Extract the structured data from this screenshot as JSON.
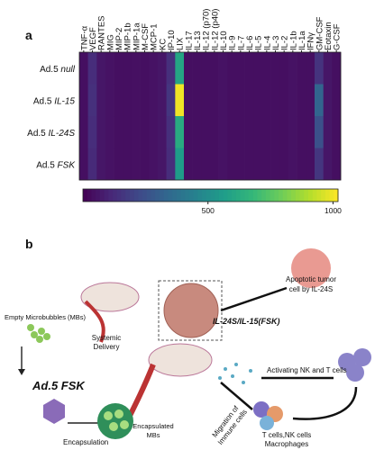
{
  "chart_data": {
    "type": "heatmap",
    "panel_label": "a",
    "x_categories": [
      "TNF-α",
      "VEGF",
      "RANTES",
      "MIG",
      "MIP-2",
      "MIP-1b",
      "MIP-1a",
      "M-CSF",
      "MCP-1",
      "KC",
      "IP-10",
      "LIX",
      "IL-17",
      "IL-13",
      "IL-12 (p70)",
      "IL-12 (p40)",
      "IL-10",
      "IL-9",
      "IL-7",
      "IL-6",
      "IL-5",
      "IL-4",
      "IL-3",
      "IL-2",
      "IL-1b",
      "IL-1a",
      "IFNγ",
      "GM-CSF",
      "Eotaxin",
      "G-CSF"
    ],
    "y_categories": [
      "Ad.5 null",
      "Ad.5 IL-15",
      "Ad.5 IL-24S",
      "Ad.5 FSK"
    ],
    "values": [
      [
        40,
        130,
        60,
        50,
        40,
        40,
        45,
        40,
        50,
        60,
        140,
        600,
        40,
        40,
        40,
        40,
        50,
        40,
        40,
        40,
        40,
        40,
        40,
        40,
        50,
        40,
        40,
        150,
        60,
        40
      ],
      [
        40,
        140,
        60,
        50,
        40,
        40,
        45,
        40,
        50,
        60,
        160,
        1000,
        40,
        40,
        40,
        40,
        50,
        40,
        40,
        40,
        40,
        40,
        40,
        40,
        50,
        40,
        40,
        330,
        60,
        40
      ],
      [
        40,
        130,
        60,
        50,
        40,
        40,
        45,
        40,
        50,
        60,
        140,
        620,
        40,
        40,
        40,
        40,
        50,
        40,
        40,
        40,
        40,
        40,
        40,
        40,
        50,
        40,
        40,
        250,
        60,
        40
      ],
      [
        40,
        120,
        60,
        50,
        40,
        40,
        45,
        40,
        50,
        60,
        130,
        560,
        40,
        40,
        40,
        40,
        50,
        40,
        40,
        40,
        40,
        40,
        40,
        40,
        50,
        40,
        40,
        160,
        60,
        40
      ]
    ],
    "colormap": "viridis",
    "zlim": [
      0,
      1020
    ],
    "colorbar_ticks": [
      500,
      1000
    ]
  },
  "diagram": {
    "panel_label": "b",
    "empty_mbs": "Empty Microbubbles (MBs)",
    "delivery": [
      "Systemic",
      "Delivery"
    ],
    "vector": "Ad.5 FSK",
    "encapsulation": "Encapsulation",
    "encapsulated": [
      "Encapsulated",
      "MBs"
    ],
    "payload": "IL-24S/IL-15(FSK)",
    "apoptosis": [
      "Apoptotic tumor",
      "cell by IL-24S"
    ],
    "activation": "Activating NK and T cells",
    "migration": [
      "Migration of",
      "Immune cells"
    ],
    "immune": [
      "T cells,NK cells",
      "Macrophages"
    ]
  }
}
